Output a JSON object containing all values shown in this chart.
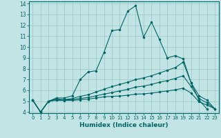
{
  "xlabel": "Humidex (Indice chaleur)",
  "background_color": "#c2e4e4",
  "grid_color": "#a0cccc",
  "line_color": "#006666",
  "xlim": [
    -0.5,
    23.5
  ],
  "ylim": [
    3.9,
    14.2
  ],
  "xticks": [
    0,
    1,
    2,
    3,
    4,
    5,
    6,
    7,
    8,
    9,
    10,
    11,
    12,
    13,
    14,
    15,
    16,
    17,
    18,
    19,
    20,
    21,
    22,
    23
  ],
  "yticks": [
    4,
    5,
    6,
    7,
    8,
    9,
    10,
    11,
    12,
    13,
    14
  ],
  "lines": [
    {
      "x": [
        0,
        1,
        2,
        3,
        4,
        5,
        6,
        7,
        8,
        9,
        10,
        11,
        12,
        13,
        14,
        15,
        16,
        17,
        18,
        19,
        20,
        21,
        22
      ],
      "y": [
        5.1,
        4.0,
        5.0,
        5.3,
        5.3,
        5.5,
        7.0,
        7.7,
        7.8,
        9.5,
        11.5,
        11.6,
        13.3,
        13.8,
        10.9,
        12.3,
        10.7,
        9.0,
        9.2,
        8.9,
        6.7,
        5.1,
        4.3
      ]
    },
    {
      "x": [
        0,
        1,
        2,
        3,
        4,
        5,
        6,
        7,
        8,
        9,
        10,
        11,
        12,
        13,
        14,
        15,
        16,
        17,
        18,
        19,
        20,
        21,
        22,
        23
      ],
      "y": [
        5.1,
        4.0,
        5.0,
        5.2,
        5.15,
        5.25,
        5.45,
        5.6,
        5.85,
        6.1,
        6.35,
        6.55,
        6.75,
        7.0,
        7.15,
        7.35,
        7.6,
        7.85,
        8.1,
        8.6,
        6.7,
        5.5,
        5.1,
        4.3
      ]
    },
    {
      "x": [
        0,
        1,
        2,
        3,
        4,
        5,
        6,
        7,
        8,
        9,
        10,
        11,
        12,
        13,
        14,
        15,
        16,
        17,
        18,
        19,
        20,
        21,
        22,
        23
      ],
      "y": [
        5.1,
        4.0,
        5.0,
        5.15,
        5.12,
        5.15,
        5.25,
        5.35,
        5.5,
        5.65,
        5.8,
        5.95,
        6.1,
        6.3,
        6.4,
        6.55,
        6.75,
        6.9,
        7.1,
        7.35,
        6.35,
        5.25,
        4.85,
        4.3
      ]
    },
    {
      "x": [
        0,
        1,
        2,
        3,
        4,
        5,
        6,
        7,
        8,
        9,
        10,
        11,
        12,
        13,
        14,
        15,
        16,
        17,
        18,
        19,
        20,
        21,
        22,
        23
      ],
      "y": [
        5.1,
        4.0,
        5.0,
        5.08,
        5.07,
        5.08,
        5.13,
        5.2,
        5.3,
        5.4,
        5.45,
        5.48,
        5.55,
        5.65,
        5.68,
        5.75,
        5.85,
        5.95,
        6.05,
        6.2,
        5.75,
        4.95,
        4.65,
        4.3
      ]
    }
  ]
}
